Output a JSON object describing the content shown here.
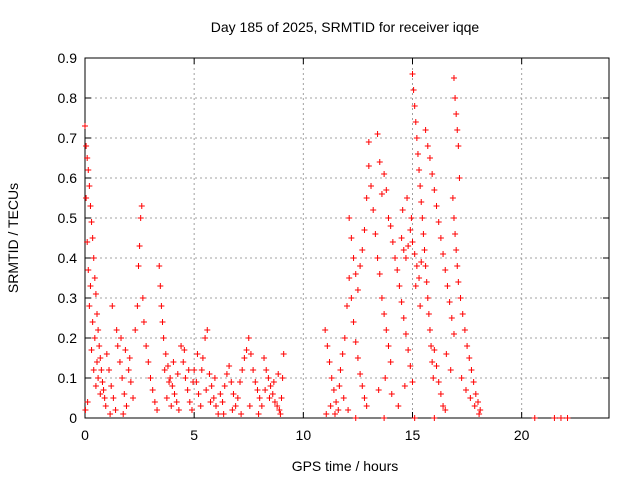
{
  "chart_data": {
    "type": "scatter",
    "title": "Day 185 of 2025, SRMTID for receiver iqqe",
    "xlabel": "GPS time / hours",
    "ylabel": "SRMTID / TECUs",
    "xlim": [
      0,
      24
    ],
    "ylim": [
      0,
      0.9
    ],
    "xticks": [
      0,
      5,
      10,
      15,
      20
    ],
    "xtick_labels": [
      "0",
      "5",
      "10",
      "15",
      "20"
    ],
    "yticks": [
      0,
      0.1,
      0.2,
      0.3,
      0.4,
      0.5,
      0.6,
      0.7,
      0.8,
      0.9
    ],
    "ytick_labels": [
      "0",
      "0.1",
      "0.2",
      "0.3",
      "0.4",
      "0.5",
      "0.6",
      "0.7",
      "0.8",
      "0.9"
    ],
    "grid": true,
    "marker": "+",
    "color": "#ff0000",
    "series": [
      {
        "name": "SRMTID",
        "points": [
          [
            0.0,
            0.73
          ],
          [
            0.05,
            0.68
          ],
          [
            0.1,
            0.65
          ],
          [
            0.15,
            0.62
          ],
          [
            0.2,
            0.58
          ],
          [
            0.25,
            0.53
          ],
          [
            0.3,
            0.49
          ],
          [
            0.35,
            0.45
          ],
          [
            0.4,
            0.4
          ],
          [
            0.45,
            0.35
          ],
          [
            0.5,
            0.31
          ],
          [
            0.55,
            0.26
          ],
          [
            0.6,
            0.22
          ],
          [
            0.65,
            0.18
          ],
          [
            0.7,
            0.15
          ],
          [
            0.75,
            0.12
          ],
          [
            0.8,
            0.09
          ],
          [
            0.85,
            0.07
          ],
          [
            0.9,
            0.05
          ],
          [
            0.95,
            0.03
          ],
          [
            0.05,
            0.55
          ],
          [
            0.1,
            0.44
          ],
          [
            0.2,
            0.28
          ],
          [
            0.3,
            0.17
          ],
          [
            0.4,
            0.12
          ],
          [
            0.5,
            0.08
          ],
          [
            0.15,
            0.37
          ],
          [
            0.25,
            0.33
          ],
          [
            0.35,
            0.24
          ],
          [
            0.45,
            0.2
          ],
          [
            0.55,
            0.14
          ],
          [
            0.6,
            0.1
          ],
          [
            0.7,
            0.06
          ],
          [
            0.02,
            0.02
          ],
          [
            0.12,
            0.04
          ],
          [
            1.0,
            0.16
          ],
          [
            1.1,
            0.12
          ],
          [
            1.2,
            0.08
          ],
          [
            1.3,
            0.05
          ],
          [
            1.4,
            0.02
          ],
          [
            1.5,
            0.18
          ],
          [
            1.6,
            0.14
          ],
          [
            1.7,
            0.1
          ],
          [
            1.8,
            0.06
          ],
          [
            1.9,
            0.03
          ],
          [
            2.0,
            0.12
          ],
          [
            2.1,
            0.09
          ],
          [
            2.2,
            0.05
          ],
          [
            1.25,
            0.28
          ],
          [
            1.45,
            0.22
          ],
          [
            1.65,
            0.2
          ],
          [
            1.85,
            0.17
          ],
          [
            2.05,
            0.15
          ],
          [
            1.15,
            0.01
          ],
          [
            1.75,
            0.01
          ],
          [
            2.3,
            0.22
          ],
          [
            2.4,
            0.28
          ],
          [
            2.5,
            0.43
          ],
          [
            2.55,
            0.5
          ],
          [
            2.6,
            0.53
          ],
          [
            2.45,
            0.38
          ],
          [
            2.65,
            0.3
          ],
          [
            2.7,
            0.24
          ],
          [
            2.8,
            0.18
          ],
          [
            2.9,
            0.14
          ],
          [
            3.0,
            0.1
          ],
          [
            3.1,
            0.07
          ],
          [
            3.2,
            0.04
          ],
          [
            3.3,
            0.02
          ],
          [
            3.4,
            0.38
          ],
          [
            3.45,
            0.33
          ],
          [
            3.5,
            0.28
          ],
          [
            3.55,
            0.24
          ],
          [
            3.6,
            0.2
          ],
          [
            3.7,
            0.16
          ],
          [
            3.8,
            0.13
          ],
          [
            3.9,
            0.1
          ],
          [
            4.0,
            0.08
          ],
          [
            4.1,
            0.06
          ],
          [
            4.2,
            0.04
          ],
          [
            4.3,
            0.02
          ],
          [
            3.65,
            0.12
          ],
          [
            3.85,
            0.09
          ],
          [
            4.05,
            0.14
          ],
          [
            4.25,
            0.11
          ],
          [
            3.75,
            0.05
          ],
          [
            3.95,
            0.03
          ],
          [
            4.4,
            0.18
          ],
          [
            4.5,
            0.14
          ],
          [
            4.6,
            0.1
          ],
          [
            4.7,
            0.07
          ],
          [
            4.8,
            0.04
          ],
          [
            4.9,
            0.02
          ],
          [
            5.0,
            0.12
          ],
          [
            5.1,
            0.09
          ],
          [
            5.2,
            0.06
          ],
          [
            5.3,
            0.03
          ],
          [
            5.4,
            0.15
          ],
          [
            5.5,
            0.2
          ],
          [
            5.6,
            0.22
          ],
          [
            5.7,
            0.11
          ],
          [
            5.8,
            0.08
          ],
          [
            5.9,
            0.05
          ],
          [
            6.0,
            0.03
          ],
          [
            6.1,
            0.01
          ],
          [
            4.55,
            0.17
          ],
          [
            4.75,
            0.12
          ],
          [
            4.95,
            0.09
          ],
          [
            5.15,
            0.16
          ],
          [
            5.35,
            0.12
          ],
          [
            5.55,
            0.07
          ],
          [
            5.75,
            0.04
          ],
          [
            5.95,
            0.1
          ],
          [
            6.2,
            0.06
          ],
          [
            6.3,
            0.04
          ],
          [
            6.4,
            0.08
          ],
          [
            6.5,
            0.11
          ],
          [
            6.6,
            0.13
          ],
          [
            6.7,
            0.09
          ],
          [
            6.8,
            0.06
          ],
          [
            6.9,
            0.03
          ],
          [
            7.0,
            0.05
          ],
          [
            7.1,
            0.09
          ],
          [
            7.2,
            0.12
          ],
          [
            7.3,
            0.15
          ],
          [
            7.4,
            0.17
          ],
          [
            7.5,
            0.2
          ],
          [
            7.6,
            0.16
          ],
          [
            7.7,
            0.12
          ],
          [
            7.8,
            0.09
          ],
          [
            7.9,
            0.07
          ],
          [
            8.0,
            0.05
          ],
          [
            8.1,
            0.03
          ],
          [
            6.35,
            0.01
          ],
          [
            6.75,
            0.02
          ],
          [
            7.15,
            0.01
          ],
          [
            7.55,
            0.03
          ],
          [
            7.95,
            0.01
          ],
          [
            8.2,
            0.15
          ],
          [
            8.3,
            0.12
          ],
          [
            8.4,
            0.1
          ],
          [
            8.5,
            0.08
          ],
          [
            8.6,
            0.06
          ],
          [
            8.7,
            0.04
          ],
          [
            8.8,
            0.03
          ],
          [
            8.9,
            0.02
          ],
          [
            9.0,
            0.05
          ],
          [
            9.05,
            0.1
          ],
          [
            9.1,
            0.16
          ],
          [
            8.25,
            0.07
          ],
          [
            8.45,
            0.05
          ],
          [
            8.65,
            0.09
          ],
          [
            8.85,
            0.11
          ],
          [
            8.95,
            0.01
          ],
          [
            11.0,
            0.22
          ],
          [
            11.1,
            0.18
          ],
          [
            11.2,
            0.14
          ],
          [
            11.3,
            0.1
          ],
          [
            11.4,
            0.07
          ],
          [
            11.5,
            0.04
          ],
          [
            11.6,
            0.02
          ],
          [
            11.7,
            0.12
          ],
          [
            11.8,
            0.16
          ],
          [
            11.9,
            0.2
          ],
          [
            12.0,
            0.28
          ],
          [
            12.1,
            0.35
          ],
          [
            12.2,
            0.3
          ],
          [
            12.3,
            0.24
          ],
          [
            12.4,
            0.19
          ],
          [
            12.5,
            0.15
          ],
          [
            12.6,
            0.11
          ],
          [
            12.7,
            0.08
          ],
          [
            12.8,
            0.05
          ],
          [
            12.9,
            0.03
          ],
          [
            11.05,
            0.01
          ],
          [
            11.25,
            0.03
          ],
          [
            11.45,
            0.01
          ],
          [
            11.65,
            0.08
          ],
          [
            11.85,
            0.05
          ],
          [
            12.05,
            0.02
          ],
          [
            12.1,
            0.5
          ],
          [
            12.2,
            0.45
          ],
          [
            12.3,
            0.4
          ],
          [
            12.4,
            0.36
          ],
          [
            12.5,
            0.32
          ],
          [
            12.6,
            0.38
          ],
          [
            12.7,
            0.42
          ],
          [
            12.8,
            0.47
          ],
          [
            12.9,
            0.55
          ],
          [
            13.0,
            0.63
          ],
          [
            13.0,
            0.69
          ],
          [
            13.1,
            0.58
          ],
          [
            13.2,
            0.52
          ],
          [
            13.3,
            0.46
          ],
          [
            13.4,
            0.4
          ],
          [
            13.5,
            0.36
          ],
          [
            13.6,
            0.3
          ],
          [
            13.7,
            0.26
          ],
          [
            13.8,
            0.22
          ],
          [
            13.9,
            0.18
          ],
          [
            14.0,
            0.14
          ],
          [
            13.4,
            0.71
          ],
          [
            13.5,
            0.64
          ],
          [
            13.6,
            0.56
          ],
          [
            13.7,
            0.61
          ],
          [
            13.8,
            0.57
          ],
          [
            13.9,
            0.5
          ],
          [
            14.0,
            0.48
          ],
          [
            14.1,
            0.44
          ],
          [
            14.2,
            0.4
          ],
          [
            14.3,
            0.37
          ],
          [
            14.4,
            0.33
          ],
          [
            14.5,
            0.29
          ],
          [
            14.6,
            0.25
          ],
          [
            14.7,
            0.21
          ],
          [
            14.8,
            0.17
          ],
          [
            14.9,
            0.13
          ],
          [
            15.0,
            0.09
          ],
          [
            13.45,
            0.07
          ],
          [
            13.75,
            0.1
          ],
          [
            14.05,
            0.06
          ],
          [
            14.35,
            0.03
          ],
          [
            14.65,
            0.08
          ],
          [
            15.0,
            0.86
          ],
          [
            15.05,
            0.82
          ],
          [
            15.1,
            0.78
          ],
          [
            15.15,
            0.74
          ],
          [
            15.2,
            0.7
          ],
          [
            15.25,
            0.66
          ],
          [
            15.3,
            0.62
          ],
          [
            15.35,
            0.58
          ],
          [
            15.4,
            0.54
          ],
          [
            15.45,
            0.5
          ],
          [
            15.5,
            0.46
          ],
          [
            15.55,
            0.42
          ],
          [
            15.6,
            0.38
          ],
          [
            15.65,
            0.34
          ],
          [
            15.7,
            0.3
          ],
          [
            15.75,
            0.26
          ],
          [
            15.8,
            0.22
          ],
          [
            15.85,
            0.18
          ],
          [
            15.9,
            0.14
          ],
          [
            15.95,
            0.1
          ],
          [
            14.5,
            0.45
          ],
          [
            14.6,
            0.42
          ],
          [
            14.7,
            0.4
          ],
          [
            14.8,
            0.43
          ],
          [
            14.9,
            0.47
          ],
          [
            15.0,
            0.44
          ],
          [
            15.1,
            0.41
          ],
          [
            15.2,
            0.38
          ],
          [
            15.3,
            0.35
          ],
          [
            15.4,
            0.39
          ],
          [
            14.55,
            0.52
          ],
          [
            14.75,
            0.55
          ],
          [
            14.95,
            0.5
          ],
          [
            15.15,
            0.33
          ],
          [
            15.35,
            0.28
          ],
          [
            15.6,
            0.72
          ],
          [
            15.7,
            0.68
          ],
          [
            15.8,
            0.65
          ],
          [
            15.9,
            0.61
          ],
          [
            16.0,
            0.57
          ],
          [
            16.1,
            0.53
          ],
          [
            16.2,
            0.49
          ],
          [
            16.3,
            0.45
          ],
          [
            16.4,
            0.41
          ],
          [
            16.5,
            0.37
          ],
          [
            16.6,
            0.33
          ],
          [
            16.7,
            0.29
          ],
          [
            16.8,
            0.25
          ],
          [
            16.9,
            0.21
          ],
          [
            16.0,
            0.17
          ],
          [
            16.1,
            0.13
          ],
          [
            16.2,
            0.09
          ],
          [
            16.3,
            0.06
          ],
          [
            16.4,
            0.03
          ],
          [
            16.5,
            0.02
          ],
          [
            16.9,
            0.85
          ],
          [
            16.95,
            0.8
          ],
          [
            17.0,
            0.76
          ],
          [
            17.05,
            0.72
          ],
          [
            17.1,
            0.68
          ],
          [
            17.15,
            0.6
          ],
          [
            16.85,
            0.55
          ],
          [
            16.9,
            0.5
          ],
          [
            16.95,
            0.46
          ],
          [
            17.0,
            0.42
          ],
          [
            17.05,
            0.38
          ],
          [
            17.1,
            0.34
          ],
          [
            17.2,
            0.3
          ],
          [
            17.3,
            0.26
          ],
          [
            17.4,
            0.22
          ],
          [
            17.5,
            0.18
          ],
          [
            17.6,
            0.15
          ],
          [
            17.7,
            0.12
          ],
          [
            17.8,
            0.09
          ],
          [
            17.9,
            0.06
          ],
          [
            18.0,
            0.04
          ],
          [
            18.1,
            0.02
          ],
          [
            17.25,
            0.1
          ],
          [
            17.45,
            0.07
          ],
          [
            17.65,
            0.05
          ],
          [
            17.85,
            0.03
          ],
          [
            18.05,
            0.01
          ],
          [
            16.75,
            0.12
          ],
          [
            16.55,
            0.16
          ],
          [
            20.6,
            0.0
          ],
          [
            21.5,
            0.0
          ],
          [
            21.8,
            0.0
          ],
          [
            22.1,
            0.0
          ],
          [
            12.4,
            0.0
          ],
          [
            13.7,
            0.0
          ],
          [
            15.1,
            0.0
          ],
          [
            16.0,
            0.0
          ]
        ]
      }
    ]
  }
}
